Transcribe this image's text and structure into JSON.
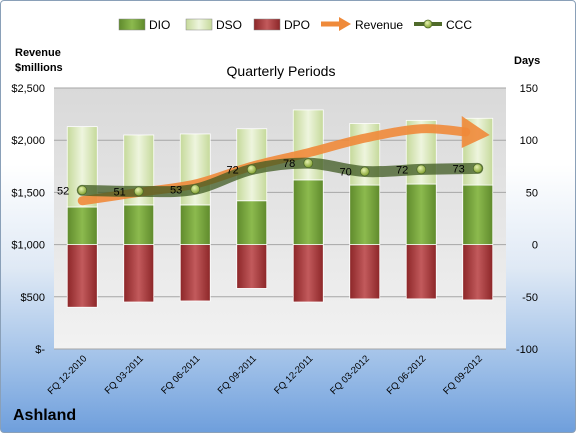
{
  "chart_data": {
    "type": "bar",
    "title": "Quarterly Periods",
    "company": "Ashland",
    "left_axis_label_line1": "Revenue",
    "left_axis_label_line2": "$millions",
    "right_axis_label": "Days",
    "categories": [
      "FQ 12-2010",
      "FQ 03-2011",
      "FQ 06-2011",
      "FQ 09-2011",
      "FQ 12-2011",
      "FQ 03-2012",
      "FQ 06-2012",
      "FQ 09-2012"
    ],
    "right_axis": {
      "min": -100,
      "max": 150,
      "ticks": [
        "150",
        "100",
        "50",
        "0",
        "-50",
        "-100"
      ],
      "tick_values": [
        150,
        100,
        50,
        0,
        -50,
        -100
      ]
    },
    "left_axis": {
      "min": 0,
      "max": 2500,
      "ticks": [
        "$2,500",
        "$2,000",
        "$1,500",
        "$1,000",
        "$500",
        "$-"
      ],
      "tick_values": [
        2500,
        2000,
        1500,
        1000,
        500,
        0
      ]
    },
    "series": [
      {
        "name": "DIO",
        "axis": "right",
        "values": [
          36,
          38,
          38,
          42,
          62,
          57,
          58,
          57
        ],
        "color": "#7ba640"
      },
      {
        "name": "DSO",
        "axis": "right",
        "values": [
          77,
          67,
          68,
          69,
          67,
          59,
          61,
          64
        ],
        "color": "#d6e5b6"
      },
      {
        "name": "DPO",
        "axis": "right",
        "values": [
          -60,
          -55,
          -54,
          -42,
          -55,
          -52,
          -52,
          -53
        ],
        "color": "#a83a3c"
      },
      {
        "name": "Revenue",
        "axis": "left",
        "values": [
          1420,
          1500,
          1580,
          1750,
          1880,
          2020,
          2110,
          2050
        ],
        "color": "#ef8a3a"
      },
      {
        "name": "CCC",
        "axis": "right",
        "values": [
          52,
          51,
          53,
          72,
          78,
          70,
          72,
          73
        ],
        "color": "#4f6a2a"
      }
    ],
    "ccc_labels": [
      "52",
      "51",
      "53",
      "72",
      "78",
      "70",
      "72",
      "73"
    ],
    "legend": [
      "DIO",
      "DSO",
      "DPO",
      "Revenue",
      "CCC"
    ],
    "legend_position": "top",
    "grid": true
  }
}
